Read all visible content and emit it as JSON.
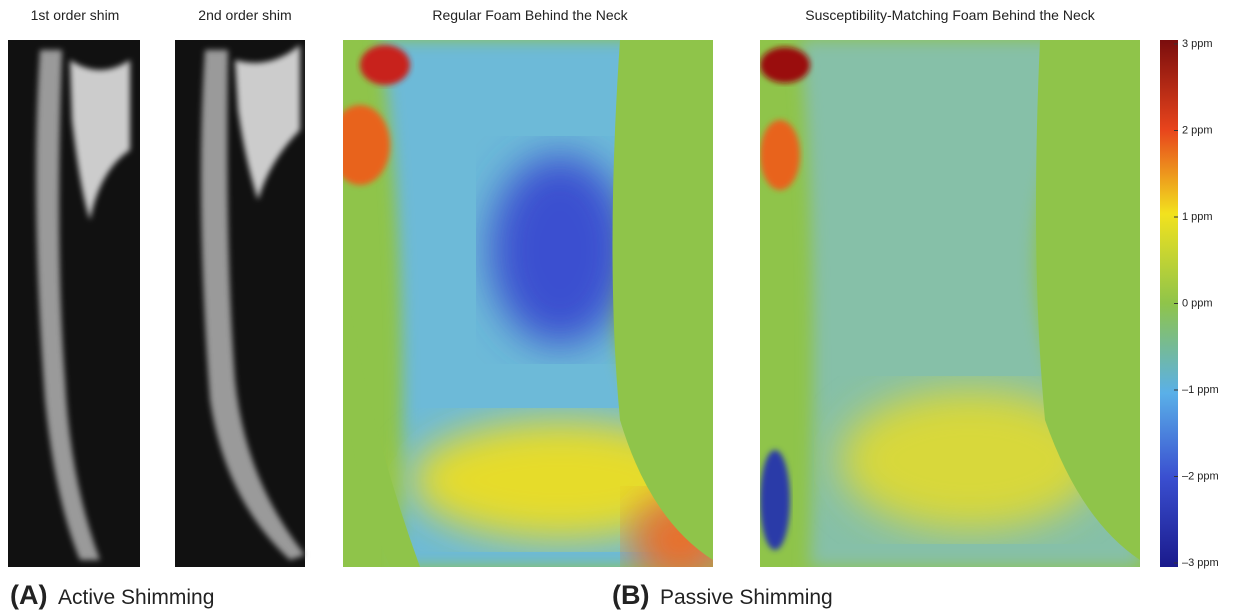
{
  "panels": [
    {
      "title": "1st order shim"
    },
    {
      "title": "2nd order shim"
    },
    {
      "title": "Regular Foam Behind the Neck"
    },
    {
      "title": "Susceptibility-Matching Foam Behind the Neck"
    }
  ],
  "colorbar": {
    "ticks": [
      {
        "value": 3,
        "label": "3 ppm"
      },
      {
        "value": 2,
        "label": "2 ppm"
      },
      {
        "value": 1,
        "label": "1 ppm"
      },
      {
        "value": 0,
        "label": "0 ppm"
      },
      {
        "value": -1,
        "label": "–1 ppm"
      },
      {
        "value": -2,
        "label": "–2 ppm"
      },
      {
        "value": -3,
        "label": "–3 ppm"
      }
    ]
  },
  "groups": [
    {
      "letter": "(A)",
      "label": "Active Shimming"
    },
    {
      "letter": "(B)",
      "label": "Passive Shimming"
    }
  ]
}
